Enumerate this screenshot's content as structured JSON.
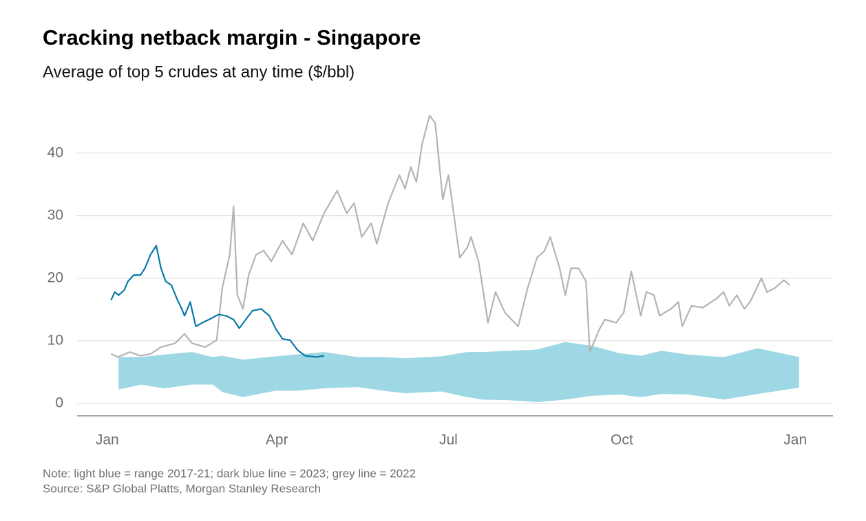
{
  "chart_data": {
    "type": "line",
    "title": "Cracking netback margin - Singapore",
    "subtitle": "Average of top 5 crudes at any time ($/bbl)",
    "notes": [
      "Note: light blue = range 2017-21; dark blue line = 2023; grey line = 2022",
      "Source: S&P Global Platts, Morgan Stanley Research"
    ],
    "xlim": [
      -16,
      385
    ],
    "xticks": [
      {
        "value": 0,
        "label": "Jan"
      },
      {
        "value": 90,
        "label": "Apr"
      },
      {
        "value": 181,
        "label": "Jul"
      },
      {
        "value": 273,
        "label": "Oct"
      },
      {
        "value": 365,
        "label": "Jan"
      }
    ],
    "ylim": [
      -2,
      48
    ],
    "yticks": [
      0,
      10,
      20,
      30,
      40
    ],
    "grid": true,
    "range": {
      "color": "#9dd8e4",
      "x": [
        6,
        18,
        30,
        45,
        56,
        61,
        72,
        89,
        100,
        115,
        133,
        147,
        158,
        177,
        191,
        199,
        213,
        228,
        243,
        257,
        272,
        283,
        294,
        308,
        327,
        345,
        367
      ],
      "high": [
        7.4,
        7.4,
        7.8,
        8.2,
        7.4,
        7.6,
        7.0,
        7.5,
        7.8,
        8.2,
        7.4,
        7.4,
        7.2,
        7.5,
        8.2,
        8.2,
        8.4,
        8.6,
        9.8,
        9.2,
        8.0,
        7.6,
        8.4,
        7.8,
        7.4,
        8.8,
        7.4
      ],
      "low": [
        2.2,
        3.0,
        2.4,
        3.0,
        3.0,
        1.8,
        1.0,
        2.0,
        2.0,
        2.4,
        2.6,
        2.0,
        1.6,
        1.9,
        1.0,
        0.6,
        0.5,
        0.2,
        0.6,
        1.2,
        1.4,
        1.0,
        1.5,
        1.4,
        0.6,
        1.5,
        2.5
      ]
    },
    "series": [
      {
        "color": "#b3b3b3",
        "x": [
          2,
          5.5,
          12,
          17.6,
          23,
          28.5,
          36,
          41,
          45,
          52,
          58,
          61,
          65,
          67,
          69,
          72,
          75,
          79,
          83,
          87,
          93,
          98,
          104,
          109,
          115,
          122,
          127,
          131,
          135,
          140,
          143,
          149,
          155,
          158,
          161,
          164,
          167,
          171,
          174,
          178,
          181,
          187,
          191,
          193,
          197,
          202,
          206,
          211,
          218,
          223,
          228,
          232,
          235,
          240,
          243,
          246,
          250,
          254,
          256,
          261,
          264,
          270,
          274,
          278,
          283,
          286,
          290,
          293,
          299,
          303,
          305,
          310,
          316,
          323,
          327,
          330,
          334,
          338,
          341,
          347,
          350,
          354,
          359,
          362
        ],
        "values": [
          7.9,
          7.4,
          8.2,
          7.6,
          7.9,
          9.0,
          9.6,
          11.1,
          9.6,
          9.0,
          10.1,
          18.4,
          23.8,
          31.5,
          17.3,
          15.1,
          20.5,
          23.8,
          24.4,
          22.7,
          26,
          23.8,
          28.8,
          26,
          30.4,
          34,
          30.4,
          32,
          26.6,
          28.8,
          25.5,
          32,
          36.5,
          34.3,
          37.8,
          35.4,
          41.4,
          46,
          44.8,
          32.6,
          36.5,
          23.3,
          24.9,
          26.6,
          22.7,
          12.9,
          17.8,
          14.5,
          12.3,
          18.4,
          23.3,
          24.4,
          26.6,
          21.6,
          17.3,
          21.6,
          21.6,
          19.5,
          8.2,
          11.8,
          13.4,
          12.9,
          14.5,
          21.1,
          14,
          17.8,
          17.3,
          14,
          15.1,
          16.2,
          12.3,
          15.6,
          15.3,
          16.7,
          17.8,
          15.6,
          17.3,
          15.1,
          16.2,
          20,
          17.8,
          18.4,
          19.7,
          18.9
        ]
      },
      {
        "color": "#0a79a8",
        "x": [
          2,
          4,
          6,
          9,
          11,
          14,
          17.6,
          20,
          23,
          26,
          28.5,
          31,
          34,
          37,
          39.5,
          41,
          44,
          47,
          50.5,
          54,
          59,
          63,
          67,
          70,
          73.5,
          77,
          81.6,
          86,
          89.6,
          93,
          97,
          101,
          105,
          111,
          115
        ],
        "values": [
          16.5,
          17.8,
          17.3,
          18.1,
          19.5,
          20.5,
          20.5,
          21.6,
          23.8,
          25.2,
          21.6,
          19.5,
          18.9,
          16.7,
          15.1,
          14,
          16.2,
          12.3,
          12.9,
          13.4,
          14.2,
          14,
          13.4,
          12,
          13.4,
          14.8,
          15.1,
          14,
          11.8,
          10.3,
          10.1,
          8.5,
          7.6,
          7.4,
          7.6
        ]
      }
    ]
  }
}
